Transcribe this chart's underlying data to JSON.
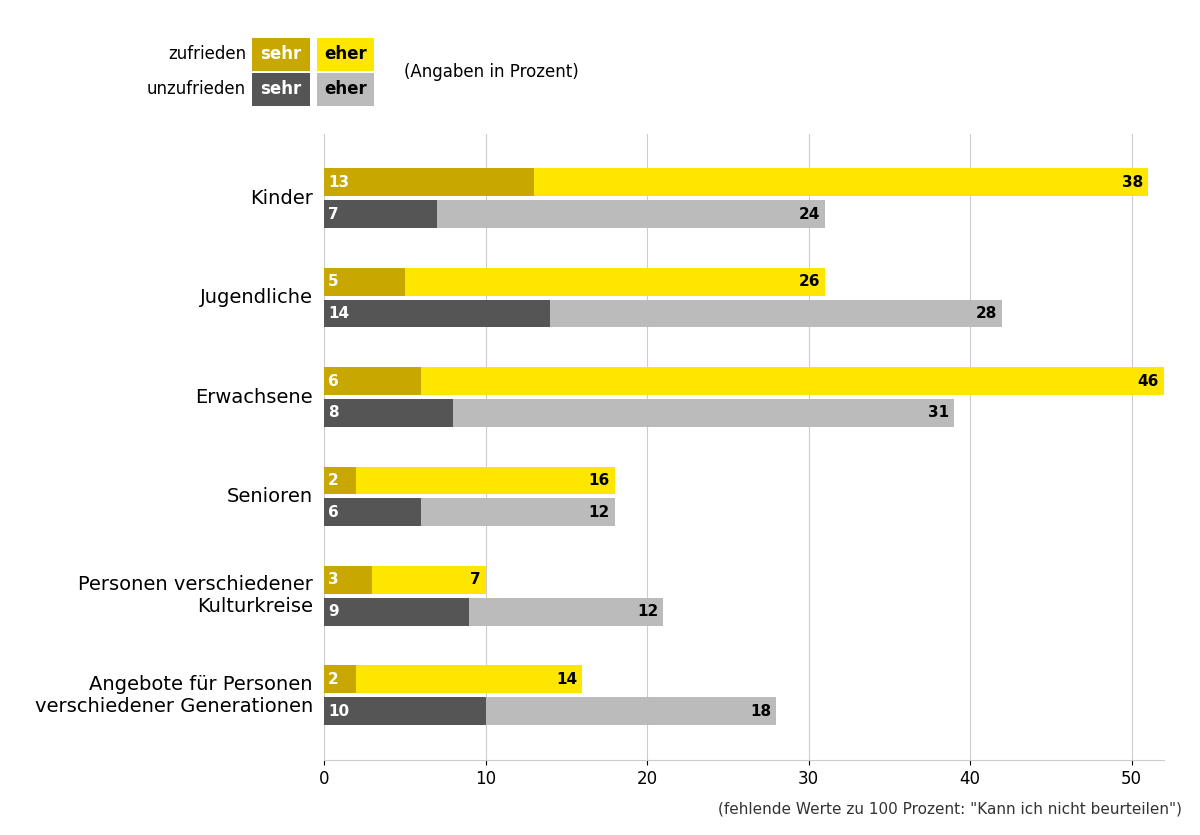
{
  "categories": [
    "Kinder",
    "Jugendliche",
    "Erwachsene",
    "Senioren",
    "Personen verschiedener\nKulturkreise",
    "Angebote für Personen\nverschiedener Generationen"
  ],
  "sehr_zufrieden": [
    13,
    5,
    6,
    2,
    3,
    2
  ],
  "eher_zufrieden": [
    38,
    26,
    46,
    16,
    7,
    14
  ],
  "sehr_unzufrieden": [
    7,
    14,
    8,
    6,
    9,
    10
  ],
  "eher_unzufrieden": [
    24,
    28,
    31,
    12,
    12,
    18
  ],
  "color_sehr_zufrieden": "#C8A800",
  "color_eher_zufrieden": "#FFE600",
  "color_sehr_unzufrieden": "#555555",
  "color_eher_unzufrieden": "#BBBBBB",
  "xlim": [
    0,
    52
  ],
  "xticks": [
    0,
    10,
    20,
    30,
    40,
    50
  ],
  "note": "(fehlende Werte zu 100 Prozent: \"Kann ich nicht beurteilen\")",
  "angaben_label": "(Angaben in Prozent)",
  "legend_zufrieden": "zufrieden",
  "legend_unzufrieden": "unzufrieden",
  "legend_sehr": "sehr",
  "legend_eher": "eher",
  "background_color": "#FFFFFF",
  "fontsize_labels": 14,
  "fontsize_ticks": 12,
  "fontsize_legend": 12,
  "fontsize_note": 11,
  "fontsize_bar_values": 11
}
